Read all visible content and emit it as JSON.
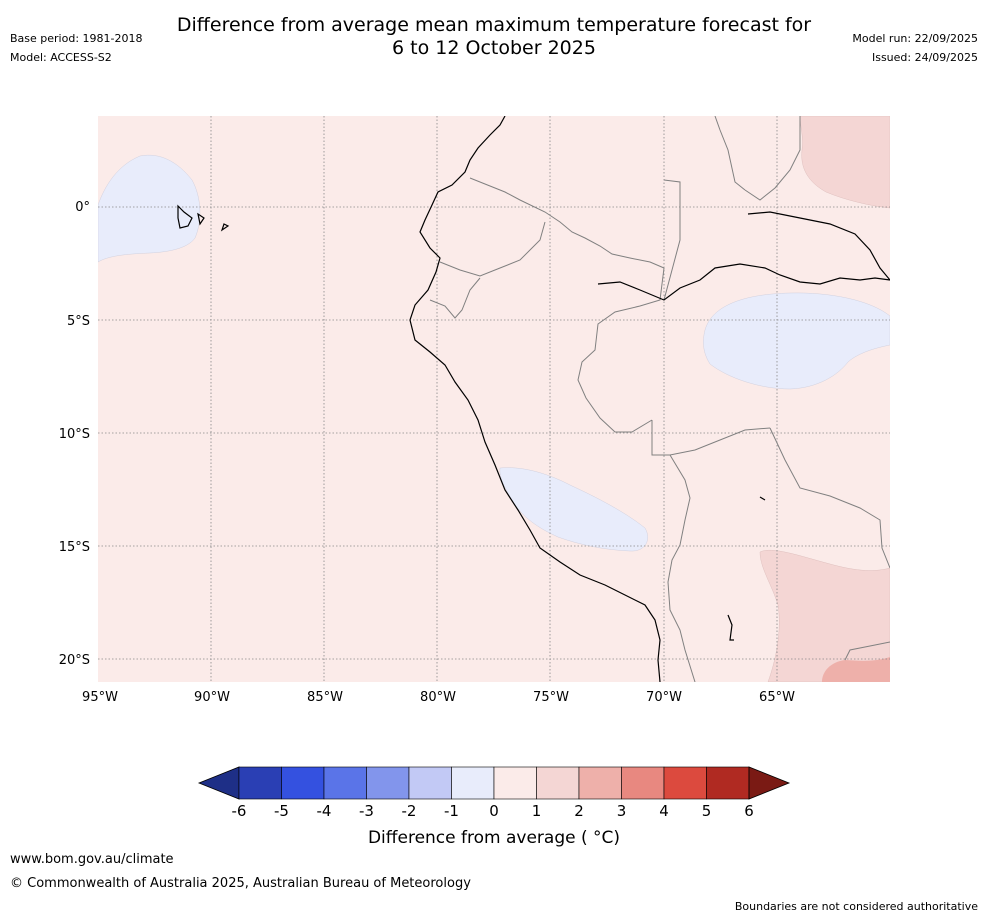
{
  "title_line1": "Difference from average mean maximum temperature forecast for",
  "title_line2": "6 to 12 October 2025",
  "meta": {
    "base_period": "Base period: 1981-2018",
    "model": "Model: ACCESS-S2",
    "model_run": "Model run: 22/09/2025",
    "issued": "Issued: 24/09/2025"
  },
  "map": {
    "lat_labels": [
      "0°",
      "5°S",
      "10°S",
      "15°S",
      "20°S"
    ],
    "lon_labels": [
      "95°W",
      "90°W",
      "85°W",
      "80°W",
      "75°W",
      "70°W",
      "65°W"
    ],
    "colors": {
      "ocean_base": "#fbebe9",
      "cool_anomaly": "#e8ecfb",
      "warm_1_2": "#f4d6d4",
      "warm_2_3": "#eeb0aa",
      "coast": "#000000",
      "border": "#808080"
    }
  },
  "colorbar": {
    "title": "Difference from average ( °C)",
    "ticks": [
      "-6",
      "-5",
      "-4",
      "-3",
      "-2",
      "-1",
      "0",
      "1",
      "2",
      "3",
      "4",
      "5",
      "6"
    ],
    "colors": [
      "#1e2f87",
      "#2a3fb4",
      "#3451e0",
      "#5a74e8",
      "#8295ec",
      "#c2c9f5",
      "#e8ecfb",
      "#fbebe9",
      "#f4d6d4",
      "#eeb0aa",
      "#e88880",
      "#dc4a3e",
      "#b02a22",
      "#7a1a14"
    ]
  },
  "footer": {
    "url": "www.bom.gov.au/climate",
    "copyright": "© Commonwealth of Australia 2025, Australian Bureau of Meteorology",
    "disclaimer": "Boundaries are not considered authoritative"
  }
}
